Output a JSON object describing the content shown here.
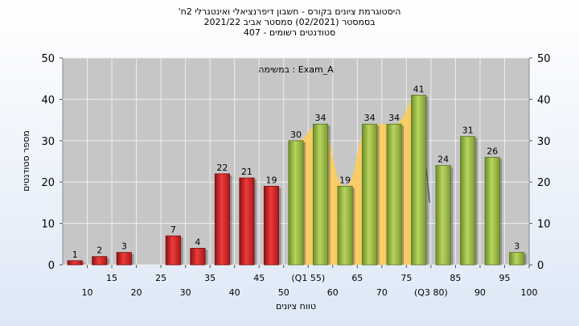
{
  "chart_data": {
    "type": "bar",
    "title_lines": [
      "'היסטוגרמת ציונים בקורס - חשבון דיפרנציאלי ואינטגרלי 2ח",
      "בסמסטר  (02/2021)  סמסטר אביב 2021/22",
      "סטודנטים רשומים - 407"
    ],
    "annotation": "במשימה : Exam_A",
    "xlabel": "טווח ציונים",
    "ylabel": "מספר סטודנטים",
    "ylim": [
      0,
      50
    ],
    "yticks": [
      0,
      10,
      20,
      30,
      40,
      50
    ],
    "grid": true,
    "categories": [
      "10",
      "15",
      "20",
      "25",
      "30",
      "35",
      "40",
      "45",
      "50",
      "(Q1 55)",
      "60",
      "65",
      "70",
      "75",
      "(Q3 80)",
      "85",
      "90",
      "95",
      "100"
    ],
    "values": [
      1,
      2,
      3,
      null,
      7,
      4,
      22,
      21,
      19,
      30,
      34,
      19,
      34,
      34,
      41,
      24,
      31,
      26,
      3
    ],
    "bar_colors": {
      "fail": "#dd2222",
      "pass": "#99bb44"
    },
    "fail_categories": [
      "10",
      "15",
      "20",
      "25",
      "30",
      "35",
      "40",
      "45",
      "50"
    ],
    "quartile_band": {
      "from": "(Q1 55)",
      "to": "(Q3 80)",
      "color": "#ffcc55"
    }
  }
}
